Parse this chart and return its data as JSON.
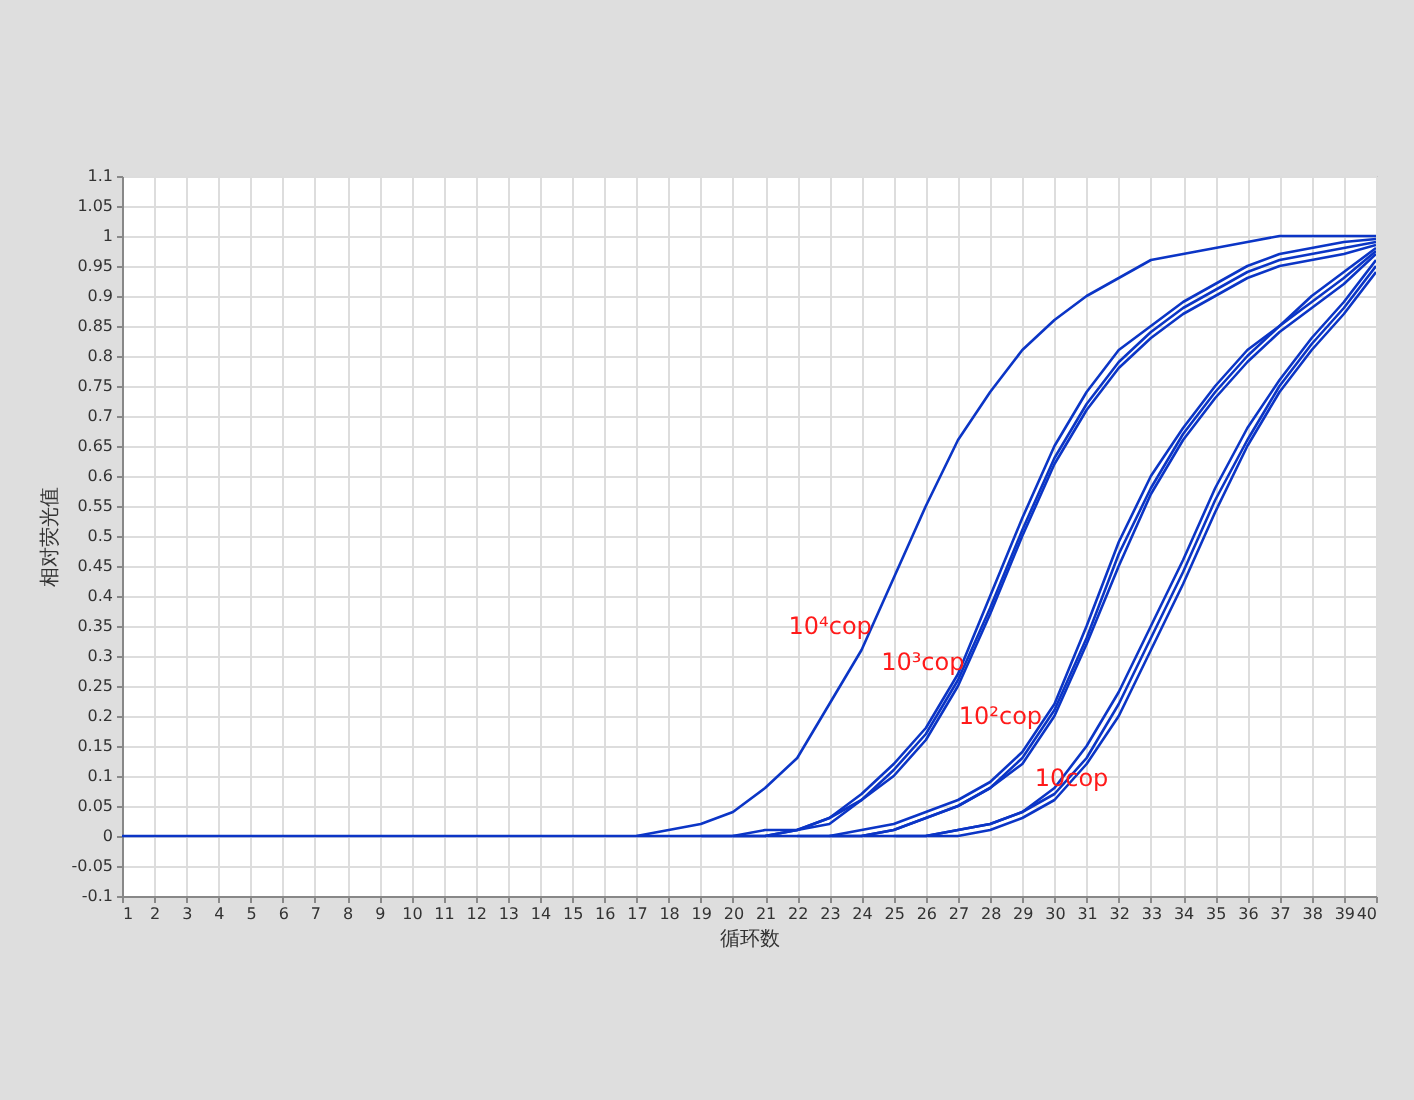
{
  "chart_data": {
    "type": "line",
    "xlabel": "循环数",
    "ylabel": "相对荧光值",
    "x": [
      1,
      2,
      3,
      4,
      5,
      6,
      7,
      8,
      9,
      10,
      11,
      12,
      13,
      14,
      15,
      16,
      17,
      18,
      19,
      20,
      21,
      22,
      23,
      24,
      25,
      26,
      27,
      28,
      29,
      30,
      31,
      32,
      33,
      34,
      35,
      36,
      37,
      38,
      39,
      40
    ],
    "series": [
      {
        "color": "#0b35c6",
        "values": [
          null,
          null,
          null,
          null,
          null,
          null,
          null,
          null,
          null,
          null,
          null,
          null,
          null,
          null,
          null,
          null,
          0,
          0.01,
          0.02,
          0.04,
          0.08,
          0.13,
          0.22,
          0.31,
          0.43,
          0.55,
          0.66,
          0.74,
          0.81,
          0.86,
          0.9,
          0.93,
          0.96,
          0.97,
          0.98,
          0.99,
          1,
          1,
          1,
          1
        ]
      },
      {
        "color": "#0b35c6",
        "values": [
          null,
          null,
          null,
          null,
          null,
          null,
          null,
          null,
          null,
          null,
          null,
          null,
          null,
          null,
          null,
          null,
          null,
          null,
          null,
          0,
          0.01,
          0.01,
          0.03,
          0.07,
          0.12,
          0.18,
          0.27,
          0.4,
          0.53,
          0.65,
          0.74,
          0.81,
          0.85,
          0.89,
          0.92,
          0.95,
          0.97,
          0.98,
          0.99,
          0.995
        ]
      },
      {
        "color": "#0b35c6",
        "values": [
          null,
          null,
          null,
          null,
          null,
          null,
          null,
          null,
          null,
          null,
          null,
          null,
          null,
          null,
          null,
          null,
          null,
          null,
          null,
          null,
          0,
          0.01,
          0.03,
          0.06,
          0.11,
          0.17,
          0.26,
          0.38,
          0.51,
          0.63,
          0.72,
          0.79,
          0.84,
          0.88,
          0.91,
          0.94,
          0.96,
          0.97,
          0.98,
          0.99
        ]
      },
      {
        "color": "#0b35c6",
        "values": [
          null,
          null,
          null,
          null,
          null,
          null,
          null,
          null,
          null,
          null,
          null,
          null,
          null,
          null,
          null,
          null,
          null,
          null,
          0,
          0,
          0,
          0.01,
          0.02,
          0.06,
          0.1,
          0.16,
          0.25,
          0.37,
          0.5,
          0.62,
          0.71,
          0.78,
          0.83,
          0.87,
          0.9,
          0.93,
          0.95,
          0.96,
          0.97,
          0.985
        ]
      },
      {
        "color": "#0b35c6",
        "values": [
          null,
          null,
          null,
          null,
          null,
          null,
          null,
          null,
          null,
          null,
          null,
          null,
          null,
          null,
          null,
          null,
          null,
          null,
          null,
          null,
          null,
          null,
          0,
          0.01,
          0.02,
          0.04,
          0.06,
          0.09,
          0.14,
          0.22,
          0.35,
          0.49,
          0.6,
          0.68,
          0.75,
          0.81,
          0.85,
          0.9,
          0.94,
          0.98
        ]
      },
      {
        "color": "#0b35c6",
        "values": [
          null,
          null,
          null,
          null,
          null,
          null,
          null,
          null,
          null,
          null,
          null,
          null,
          null,
          null,
          null,
          null,
          null,
          null,
          null,
          null,
          null,
          null,
          null,
          0,
          0.01,
          0.03,
          0.05,
          0.08,
          0.13,
          0.21,
          0.33,
          0.47,
          0.58,
          0.67,
          0.74,
          0.8,
          0.85,
          0.89,
          0.93,
          0.975
        ]
      },
      {
        "color": "#0b35c6",
        "values": [
          null,
          null,
          null,
          null,
          null,
          null,
          null,
          null,
          null,
          null,
          null,
          null,
          null,
          null,
          null,
          null,
          null,
          null,
          null,
          null,
          null,
          0,
          0,
          0,
          0.01,
          0.03,
          0.05,
          0.08,
          0.12,
          0.2,
          0.32,
          0.45,
          0.57,
          0.66,
          0.73,
          0.79,
          0.84,
          0.88,
          0.92,
          0.97
        ]
      },
      {
        "color": "#0b35c6",
        "values": [
          null,
          null,
          null,
          null,
          null,
          null,
          null,
          null,
          null,
          null,
          null,
          null,
          null,
          null,
          null,
          null,
          null,
          null,
          null,
          null,
          null,
          null,
          null,
          null,
          null,
          0,
          0.01,
          0.02,
          0.04,
          0.08,
          0.15,
          0.24,
          0.35,
          0.46,
          0.58,
          0.68,
          0.76,
          0.83,
          0.89,
          0.96
        ]
      },
      {
        "color": "#0b35c6",
        "values": [
          null,
          null,
          null,
          null,
          null,
          null,
          null,
          null,
          null,
          null,
          null,
          null,
          null,
          null,
          null,
          null,
          null,
          null,
          null,
          null,
          null,
          null,
          null,
          null,
          0,
          0,
          0.01,
          0.02,
          0.04,
          0.07,
          0.13,
          0.22,
          0.33,
          0.44,
          0.56,
          0.66,
          0.75,
          0.82,
          0.88,
          0.95
        ]
      },
      {
        "color": "#0b35c6",
        "values": [
          0,
          0,
          0,
          0,
          0,
          0,
          0,
          0,
          0,
          0,
          0,
          0,
          0,
          0,
          0,
          0,
          0,
          0,
          0,
          0,
          0,
          0,
          0,
          0,
          0,
          0,
          0,
          0.01,
          0.03,
          0.06,
          0.12,
          0.2,
          0.31,
          0.42,
          0.54,
          0.65,
          0.74,
          0.81,
          0.87,
          0.94
        ]
      }
    ],
    "xlim": [
      1,
      40
    ],
    "xticks": [
      1,
      2,
      3,
      4,
      5,
      6,
      7,
      8,
      9,
      10,
      11,
      12,
      13,
      14,
      15,
      16,
      17,
      18,
      19,
      20,
      21,
      22,
      23,
      24,
      25,
      26,
      27,
      28,
      29,
      30,
      31,
      32,
      33,
      34,
      35,
      36,
      37,
      38,
      39,
      40
    ],
    "ylim": [
      -0.1,
      1.1
    ],
    "yticks": [
      -0.1,
      -0.05,
      0,
      0.05,
      0.1,
      0.15,
      0.2,
      0.25,
      0.3,
      0.35,
      0.4,
      0.45,
      0.5,
      0.55,
      0.6,
      0.65,
      0.7,
      0.75,
      0.8,
      0.85,
      0.9,
      0.95,
      1,
      1.05,
      1.1
    ],
    "annotations": [
      {
        "text": "10⁴cop",
        "x": 24.33,
        "y": 0.35
      },
      {
        "text": "10³cop",
        "x": 27.15,
        "y": 0.29
      },
      {
        "text": "10²cop",
        "x": 29.75,
        "y": 0.2
      },
      {
        "text": "10cop",
        "x": 30.53,
        "y": 0.096
      }
    ],
    "grid": true,
    "line_style": "solid"
  }
}
